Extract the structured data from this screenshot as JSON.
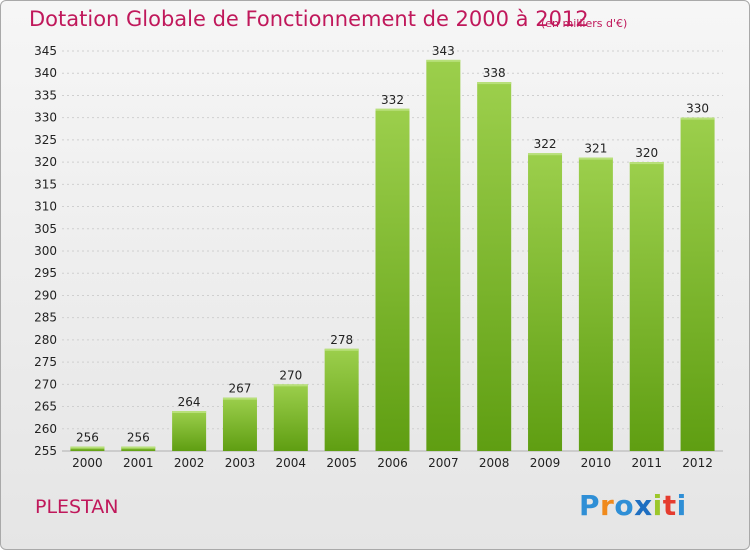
{
  "header": {
    "title": "Dotation Globale de Fonctionnement de 2000 à 2012",
    "unit": "(en milliers d'€)"
  },
  "footer": {
    "commune": "PLESTAN",
    "logo_letters": [
      "P",
      "r",
      "o",
      "x",
      "i",
      "t",
      "i"
    ],
    "logo_colors": [
      "#2f8fd6",
      "#f08a1c",
      "#2f8fd6",
      "#1f6fc1",
      "#9cc72a",
      "#e53c2f",
      "#2f8fd6"
    ]
  },
  "colors": {
    "bar_top": "#9ccf4c",
    "bar_bottom": "#5f9e12",
    "text": "#222222",
    "title": "#c0185b"
  },
  "chart_data": {
    "type": "bar",
    "title": "Dotation Globale de Fonctionnement de 2000 à 2012",
    "subtitle": "(en milliers d'€)",
    "categories": [
      "2000",
      "2001",
      "2002",
      "2003",
      "2004",
      "2005",
      "2006",
      "2007",
      "2008",
      "2009",
      "2010",
      "2011",
      "2012"
    ],
    "values": [
      256,
      256,
      264,
      267,
      270,
      278,
      332,
      343,
      338,
      322,
      321,
      320,
      330
    ],
    "ylim": [
      255,
      345
    ],
    "yticks": [
      255,
      260,
      265,
      270,
      275,
      280,
      285,
      290,
      295,
      300,
      305,
      310,
      315,
      320,
      325,
      330,
      335,
      340,
      345
    ],
    "grid": true,
    "data_labels": true
  }
}
